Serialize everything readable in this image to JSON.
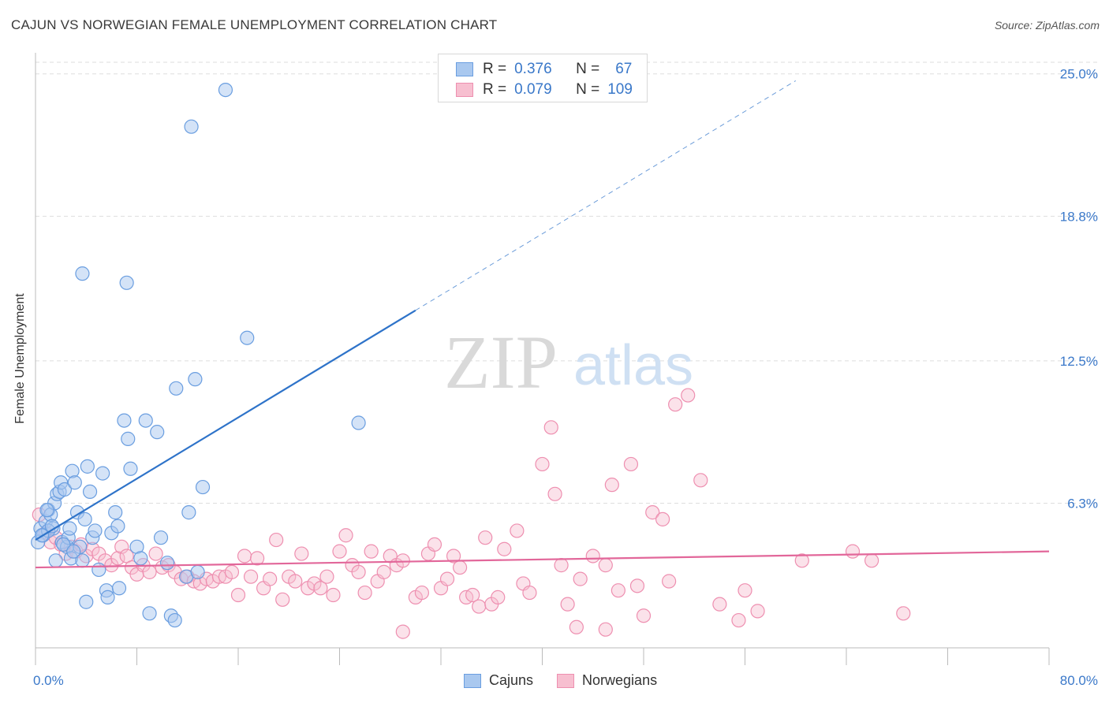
{
  "title": "CAJUN VS NORWEGIAN FEMALE UNEMPLOYMENT CORRELATION CHART",
  "source": "Source: ZipAtlas.com",
  "watermark": {
    "zip": "ZIP",
    "atlas": "atlas"
  },
  "legend": {
    "cajuns": {
      "r_label": "R =",
      "r_value": "0.376",
      "n_label": "N =",
      "n_value": "67"
    },
    "norwegians": {
      "r_label": "R =",
      "r_value": "0.079",
      "n_label": "N =",
      "n_value": "109"
    }
  },
  "bottom_legend": {
    "cajuns": "Cajuns",
    "norwegians": "Norwegians"
  },
  "colors": {
    "cajun_fill": "#a9c8ef",
    "cajun_stroke": "#6a9ee0",
    "cajun_line": "#2e73c9",
    "norw_fill": "#f7bfd0",
    "norw_stroke": "#ee8fb0",
    "norw_line": "#e2679a",
    "tick_label": "#3a78c9",
    "grid": "#dddddd"
  },
  "chart_data": {
    "type": "scatter",
    "title": "CAJUN VS NORWEGIAN FEMALE UNEMPLOYMENT CORRELATION CHART",
    "xlabel": "",
    "ylabel": "Female Unemployment",
    "xlim": [
      0,
      80
    ],
    "ylim": [
      0,
      26.5
    ],
    "x_tick_labels": [
      "0.0%",
      "80.0%"
    ],
    "y_ticks": [
      6.3,
      12.5,
      18.8,
      25.0
    ],
    "y_tick_labels": [
      "6.3%",
      "12.5%",
      "18.8%",
      "25.0%"
    ],
    "series": [
      {
        "name": "Cajuns",
        "R": 0.376,
        "N": 67,
        "trend": {
          "x0": 0,
          "y0": 4.7,
          "x1": 30,
          "y1": 14.7,
          "x_dash_end": 60,
          "y_dash_end": 24.7
        },
        "points": [
          [
            0.2,
            4.6
          ],
          [
            0.4,
            5.2
          ],
          [
            0.6,
            4.9
          ],
          [
            0.8,
            5.5
          ],
          [
            1.0,
            6.0
          ],
          [
            1.2,
            5.8
          ],
          [
            1.4,
            5.2
          ],
          [
            1.5,
            6.3
          ],
          [
            1.6,
            3.8
          ],
          [
            1.7,
            6.7
          ],
          [
            1.9,
            6.8
          ],
          [
            2.0,
            7.2
          ],
          [
            2.1,
            4.6
          ],
          [
            2.3,
            6.9
          ],
          [
            2.5,
            4.4
          ],
          [
            2.6,
            4.8
          ],
          [
            2.7,
            5.2
          ],
          [
            2.8,
            3.9
          ],
          [
            2.9,
            7.7
          ],
          [
            3.1,
            7.2
          ],
          [
            3.3,
            5.9
          ],
          [
            3.5,
            4.4
          ],
          [
            3.7,
            3.8
          ],
          [
            3.9,
            5.6
          ],
          [
            4.1,
            7.9
          ],
          [
            4.3,
            6.8
          ],
          [
            4.5,
            4.8
          ],
          [
            4.7,
            5.1
          ],
          [
            5.0,
            3.4
          ],
          [
            5.3,
            7.6
          ],
          [
            5.6,
            2.5
          ],
          [
            6.0,
            5.0
          ],
          [
            6.3,
            5.9
          ],
          [
            6.6,
            2.6
          ],
          [
            7.0,
            9.9
          ],
          [
            7.3,
            9.1
          ],
          [
            7.5,
            7.8
          ],
          [
            8.0,
            4.4
          ],
          [
            8.3,
            3.9
          ],
          [
            8.7,
            9.9
          ],
          [
            9.0,
            1.5
          ],
          [
            9.6,
            9.4
          ],
          [
            9.9,
            4.8
          ],
          [
            10.4,
            3.7
          ],
          [
            10.7,
            1.4
          ],
          [
            11.0,
            1.2
          ],
          [
            11.1,
            11.3
          ],
          [
            11.9,
            3.1
          ],
          [
            12.1,
            5.9
          ],
          [
            12.6,
            11.7
          ],
          [
            12.8,
            3.3
          ],
          [
            13.2,
            7.0
          ],
          [
            15.0,
            24.3
          ],
          [
            16.7,
            13.5
          ],
          [
            25.5,
            9.8
          ],
          [
            12.3,
            22.7
          ],
          [
            3.7,
            16.3
          ],
          [
            7.2,
            15.9
          ],
          [
            4.0,
            2.0
          ],
          [
            5.7,
            2.2
          ],
          [
            0.9,
            6.0
          ],
          [
            2.2,
            4.5
          ],
          [
            1.0,
            5.1
          ],
          [
            3.0,
            4.2
          ],
          [
            6.5,
            5.3
          ],
          [
            0.5,
            4.9
          ],
          [
            1.3,
            5.3
          ]
        ]
      },
      {
        "name": "Norwegians",
        "R": 0.079,
        "N": 109,
        "trend": {
          "x0": 0,
          "y0": 3.5,
          "x1": 80,
          "y1": 4.2
        },
        "points": [
          [
            0.3,
            5.8
          ],
          [
            0.8,
            5.0
          ],
          [
            1.2,
            4.6
          ],
          [
            1.6,
            4.8
          ],
          [
            2.0,
            4.5
          ],
          [
            2.4,
            4.1
          ],
          [
            2.8,
            4.4
          ],
          [
            3.2,
            4.2
          ],
          [
            3.6,
            4.5
          ],
          [
            4.0,
            4.0
          ],
          [
            4.5,
            4.3
          ],
          [
            5.0,
            4.1
          ],
          [
            5.5,
            3.8
          ],
          [
            6.0,
            3.6
          ],
          [
            6.5,
            3.9
          ],
          [
            6.8,
            4.4
          ],
          [
            7.2,
            4.0
          ],
          [
            7.6,
            3.5
          ],
          [
            8.0,
            3.2
          ],
          [
            8.5,
            3.6
          ],
          [
            9.0,
            3.3
          ],
          [
            9.5,
            4.1
          ],
          [
            10.0,
            3.5
          ],
          [
            10.5,
            3.6
          ],
          [
            11.0,
            3.3
          ],
          [
            11.5,
            3.0
          ],
          [
            12.0,
            3.1
          ],
          [
            12.5,
            2.9
          ],
          [
            13.0,
            2.8
          ],
          [
            13.5,
            3.0
          ],
          [
            14.0,
            2.9
          ],
          [
            14.5,
            3.1
          ],
          [
            15.0,
            3.1
          ],
          [
            15.5,
            3.3
          ],
          [
            16.0,
            2.3
          ],
          [
            16.5,
            4.0
          ],
          [
            17.0,
            3.1
          ],
          [
            17.5,
            3.9
          ],
          [
            18.0,
            2.6
          ],
          [
            18.5,
            3.0
          ],
          [
            19.0,
            4.7
          ],
          [
            19.5,
            2.1
          ],
          [
            20.0,
            3.1
          ],
          [
            20.5,
            2.9
          ],
          [
            21.0,
            4.1
          ],
          [
            21.5,
            2.6
          ],
          [
            22.0,
            2.8
          ],
          [
            22.5,
            2.6
          ],
          [
            23.0,
            3.1
          ],
          [
            23.5,
            2.3
          ],
          [
            24.0,
            4.2
          ],
          [
            24.5,
            4.9
          ],
          [
            25.0,
            3.6
          ],
          [
            25.5,
            3.3
          ],
          [
            26.0,
            2.4
          ],
          [
            26.5,
            4.2
          ],
          [
            27.0,
            2.9
          ],
          [
            27.5,
            3.3
          ],
          [
            28.0,
            4.0
          ],
          [
            28.5,
            3.6
          ],
          [
            29.0,
            3.8
          ],
          [
            30.0,
            2.2
          ],
          [
            30.5,
            2.4
          ],
          [
            31.0,
            4.1
          ],
          [
            31.5,
            4.5
          ],
          [
            32.0,
            2.6
          ],
          [
            32.5,
            3.0
          ],
          [
            33.0,
            4.0
          ],
          [
            33.5,
            3.5
          ],
          [
            34.0,
            2.2
          ],
          [
            34.5,
            2.3
          ],
          [
            35.0,
            1.8
          ],
          [
            35.5,
            4.8
          ],
          [
            36.0,
            1.9
          ],
          [
            36.5,
            2.2
          ],
          [
            37.0,
            4.3
          ],
          [
            38.0,
            5.1
          ],
          [
            38.5,
            2.8
          ],
          [
            39.0,
            2.4
          ],
          [
            40.0,
            8.0
          ],
          [
            40.7,
            9.6
          ],
          [
            41.0,
            6.7
          ],
          [
            41.5,
            3.6
          ],
          [
            42.0,
            1.9
          ],
          [
            42.7,
            0.9
          ],
          [
            43.0,
            3.0
          ],
          [
            44.0,
            4.0
          ],
          [
            45.0,
            3.6
          ],
          [
            45.5,
            7.1
          ],
          [
            46.0,
            2.5
          ],
          [
            47.0,
            8.0
          ],
          [
            47.5,
            2.7
          ],
          [
            48.0,
            1.4
          ],
          [
            48.7,
            5.9
          ],
          [
            49.5,
            5.6
          ],
          [
            50.0,
            2.9
          ],
          [
            50.5,
            10.6
          ],
          [
            51.5,
            11.0
          ],
          [
            52.5,
            7.3
          ],
          [
            54.0,
            1.9
          ],
          [
            55.5,
            1.2
          ],
          [
            56.0,
            2.5
          ],
          [
            57.0,
            1.6
          ],
          [
            60.5,
            3.8
          ],
          [
            64.5,
            4.2
          ],
          [
            66.0,
            3.8
          ],
          [
            68.5,
            1.5
          ],
          [
            45.0,
            0.8
          ],
          [
            29.0,
            0.7
          ]
        ]
      }
    ]
  }
}
